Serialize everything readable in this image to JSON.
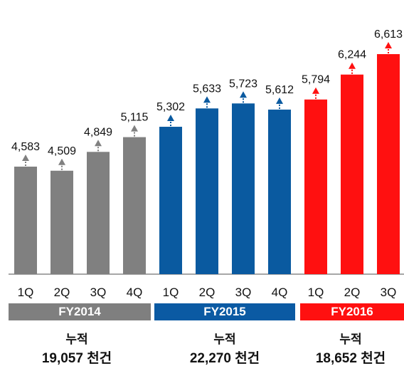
{
  "chart_data": {
    "type": "bar",
    "categories": [
      "1Q",
      "2Q",
      "3Q",
      "4Q",
      "1Q",
      "2Q",
      "3Q",
      "4Q",
      "1Q",
      "2Q",
      "3Q"
    ],
    "values": [
      4583,
      4509,
      4849,
      5115,
      5302,
      5633,
      5723,
      5612,
      5794,
      6244,
      6613
    ],
    "value_labels": [
      "4,583",
      "4,509",
      "4,849",
      "5,115",
      "5,302",
      "5,633",
      "5,723",
      "5,612",
      "5,794",
      "6,244",
      "6,613"
    ],
    "groups": [
      {
        "name": "FY2014",
        "color": "#808080",
        "band_color": "#7f7f7f",
        "start": 0,
        "count": 4,
        "cumulative_label": "누적",
        "cumulative_total": "19,057 천건"
      },
      {
        "name": "FY2015",
        "color": "#0a5aa0",
        "band_color": "#0b5aa3",
        "start": 4,
        "count": 4,
        "cumulative_label": "누적",
        "cumulative_total": "22,270 천건"
      },
      {
        "name": "FY2016",
        "color": "#ff1010",
        "band_color": "#ff1010",
        "start": 8,
        "count": 3,
        "cumulative_label": "누적",
        "cumulative_total": "18,652 천건"
      }
    ],
    "ylim": [
      0,
      6900
    ],
    "title": "",
    "xlabel": "",
    "ylabel": "",
    "grid": false
  }
}
